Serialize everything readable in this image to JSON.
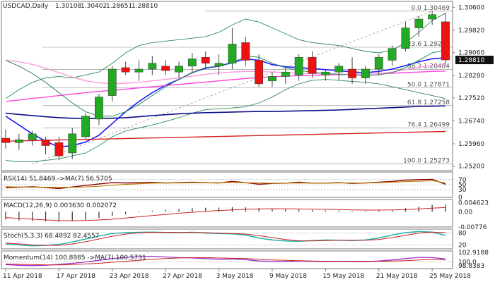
{
  "chart_data": {
    "type": "candlestick",
    "title": "USDCAD,Daily",
    "ohlc_header": {
      "open": "1.30108",
      "high": "1.30402",
      "low": "1.28651",
      "close": "1.28810"
    },
    "current_price": "1.28810",
    "x_ticks": [
      "11 Apr 2018",
      "17 Apr 2018",
      "23 Apr 2018",
      "27 Apr 2018",
      "3 May 2018",
      "9 May 2018",
      "15 May 2018",
      "21 May 2018",
      "25 May 2018"
    ],
    "main_y_ticks": [
      "1.30600",
      "1.29820",
      "1.29060",
      "1.28280",
      "1.27520",
      "1.26740",
      "1.25960",
      "1.25200"
    ],
    "candles": [
      {
        "o": 1.2615,
        "h": 1.2645,
        "l": 1.258,
        "c": 1.26
      },
      {
        "o": 1.26,
        "h": 1.263,
        "l": 1.2575,
        "c": 1.261
      },
      {
        "o": 1.261,
        "h": 1.264,
        "l": 1.259,
        "c": 1.263
      },
      {
        "o": 1.261,
        "h": 1.262,
        "l": 1.256,
        "c": 1.259
      },
      {
        "o": 1.26,
        "h": 1.262,
        "l": 1.254,
        "c": 1.2555
      },
      {
        "o": 1.2565,
        "h": 1.265,
        "l": 1.2545,
        "c": 1.263
      },
      {
        "o": 1.262,
        "h": 1.27,
        "l": 1.261,
        "c": 1.269
      },
      {
        "o": 1.268,
        "h": 1.2765,
        "l": 1.266,
        "c": 1.2755
      },
      {
        "o": 1.276,
        "h": 1.286,
        "l": 1.274,
        "c": 1.285
      },
      {
        "o": 1.2855,
        "h": 1.2875,
        "l": 1.283,
        "c": 1.284
      },
      {
        "o": 1.284,
        "h": 1.288,
        "l": 1.281,
        "c": 1.285
      },
      {
        "o": 1.285,
        "h": 1.2895,
        "l": 1.283,
        "c": 1.287
      },
      {
        "o": 1.286,
        "h": 1.288,
        "l": 1.283,
        "c": 1.2845
      },
      {
        "o": 1.284,
        "h": 1.2875,
        "l": 1.282,
        "c": 1.286
      },
      {
        "o": 1.286,
        "h": 1.2905,
        "l": 1.2835,
        "c": 1.2885
      },
      {
        "o": 1.289,
        "h": 1.291,
        "l": 1.285,
        "c": 1.287
      },
      {
        "o": 1.286,
        "h": 1.29,
        "l": 1.283,
        "c": 1.287
      },
      {
        "o": 1.287,
        "h": 1.299,
        "l": 1.285,
        "c": 1.2935
      },
      {
        "o": 1.294,
        "h": 1.296,
        "l": 1.286,
        "c": 1.288
      },
      {
        "o": 1.288,
        "h": 1.29,
        "l": 1.279,
        "c": 1.28
      },
      {
        "o": 1.281,
        "h": 1.284,
        "l": 1.279,
        "c": 1.2825
      },
      {
        "o": 1.2825,
        "h": 1.2855,
        "l": 1.28,
        "c": 1.284
      },
      {
        "o": 1.283,
        "h": 1.29,
        "l": 1.281,
        "c": 1.289
      },
      {
        "o": 1.289,
        "h": 1.291,
        "l": 1.282,
        "c": 1.2835
      },
      {
        "o": 1.283,
        "h": 1.285,
        "l": 1.281,
        "c": 1.284
      },
      {
        "o": 1.284,
        "h": 1.287,
        "l": 1.281,
        "c": 1.286
      },
      {
        "o": 1.285,
        "h": 1.289,
        "l": 1.28,
        "c": 1.282
      },
      {
        "o": 1.282,
        "h": 1.286,
        "l": 1.28,
        "c": 1.285
      },
      {
        "o": 1.285,
        "h": 1.29,
        "l": 1.283,
        "c": 1.289
      },
      {
        "o": 1.288,
        "h": 1.293,
        "l": 1.286,
        "c": 1.292
      },
      {
        "o": 1.292,
        "h": 1.301,
        "l": 1.291,
        "c": 1.299
      },
      {
        "o": 1.299,
        "h": 1.303,
        "l": 1.296,
        "c": 1.302
      },
      {
        "o": 1.302,
        "h": 1.3047,
        "l": 1.3,
        "c": 1.3035
      },
      {
        "o": 1.30108,
        "h": 1.30402,
        "l": 1.28651,
        "c": 1.2881
      }
    ],
    "overlays": [
      {
        "color": "#1a1aff",
        "width": 1.6,
        "values": [
          1.269,
          1.266,
          1.263,
          1.2605,
          1.2585,
          1.259,
          1.2602,
          1.2625,
          1.2665,
          1.2705,
          1.274,
          1.277,
          1.2795,
          1.2815,
          1.2838,
          1.2853,
          1.286,
          1.2872,
          1.2885,
          1.288,
          1.2865,
          1.2858,
          1.2855,
          1.2852,
          1.2848,
          1.2845,
          1.284,
          1.2838,
          1.2842,
          1.285,
          1.2862,
          1.2875,
          1.2885,
          1.2888
        ]
      },
      {
        "color": "#0b0b8a",
        "width": 1.6,
        "values": [
          1.27,
          1.2696,
          1.2692,
          1.2688,
          1.2685,
          1.2683,
          1.2682,
          1.2682,
          1.2683,
          1.2685,
          1.2688,
          1.2692,
          1.2695,
          1.2698,
          1.27,
          1.2702,
          1.2703,
          1.2704,
          1.2705,
          1.2706,
          1.2706,
          1.2707,
          1.2708,
          1.2709,
          1.271,
          1.2711,
          1.2713,
          1.2715,
          1.2717,
          1.2719,
          1.2721,
          1.2723,
          1.2724,
          1.2725
        ]
      },
      {
        "color": "#ff44dd",
        "width": 1.4,
        "values": [
          1.274,
          1.2745,
          1.275,
          1.2755,
          1.276,
          1.2765,
          1.277,
          1.2774,
          1.2778,
          1.2782,
          1.2786,
          1.279,
          1.2794,
          1.2798,
          1.2802,
          1.2806,
          1.281,
          1.2814,
          1.2818,
          1.2821,
          1.2824,
          1.2826,
          1.2828,
          1.2829,
          1.283,
          1.2831,
          1.2832,
          1.2833,
          1.2834,
          1.2836,
          1.2838,
          1.284,
          1.2842,
          1.2843
        ]
      },
      {
        "color": "#ff9ad8",
        "width": 1.4,
        "values": [
          1.288,
          1.2875,
          1.2866,
          1.2853,
          1.2838,
          1.2823,
          1.281,
          1.2803,
          1.28,
          1.2802,
          1.2805,
          1.281,
          1.2815,
          1.282,
          1.2826,
          1.2832,
          1.2837,
          1.284,
          1.2842,
          1.2842,
          1.284,
          1.2838,
          1.2836,
          1.2835,
          1.2834,
          1.2833,
          1.2832,
          1.2833,
          1.2835,
          1.284,
          1.2848,
          1.2856,
          1.2862,
          1.2865
        ]
      },
      {
        "color": "#2e8b57",
        "width": 1.0,
        "values": [
          1.288,
          1.286,
          1.2835,
          1.2805,
          1.277,
          1.2735,
          1.2705,
          1.269,
          1.269,
          1.2705,
          1.273,
          1.276,
          1.279,
          1.2815,
          1.2838,
          1.2855,
          1.286,
          1.287,
          1.2895,
          1.289,
          1.287,
          1.2855,
          1.2845,
          1.284,
          1.2835,
          1.2832,
          1.283,
          1.2828,
          1.283,
          1.2838,
          1.2855,
          1.288,
          1.2905,
          1.2915
        ]
      },
      {
        "color": "#d42020",
        "width": 1.4,
        "values": [
          1.2605,
          1.2606,
          1.2607,
          1.2608,
          1.2609,
          1.261,
          1.2611,
          1.2612,
          1.2613,
          1.2614,
          1.2615,
          1.2616,
          1.2617,
          1.2618,
          1.2619,
          1.262,
          1.2621,
          1.2622,
          1.2623,
          1.2624,
          1.2625,
          1.2626,
          1.2627,
          1.2628,
          1.2629,
          1.263,
          1.2631,
          1.2632,
          1.2633,
          1.2634,
          1.2635,
          1.2636,
          1.2637,
          1.2638
        ]
      }
    ],
    "bands": {
      "color": "#2e8b57",
      "upper": [
        1.275,
        1.278,
        1.2805,
        1.282,
        1.2825,
        1.282,
        1.283,
        1.284,
        1.287,
        1.2905,
        1.293,
        1.294,
        1.2945,
        1.295,
        1.2955,
        1.296,
        1.2975,
        1.3,
        1.302,
        1.301,
        1.299,
        1.297,
        1.295,
        1.294,
        1.2935,
        1.293,
        1.292,
        1.291,
        1.2905,
        1.2915,
        1.294,
        1.2975,
        1.3015,
        1.304
      ],
      "lower": [
        1.254,
        1.2535,
        1.2535,
        1.254,
        1.2545,
        1.2555,
        1.2565,
        1.259,
        1.262,
        1.264,
        1.265,
        1.266,
        1.2672,
        1.2685,
        1.27,
        1.2712,
        1.2715,
        1.2718,
        1.2722,
        1.2735,
        1.2755,
        1.278,
        1.28,
        1.2812,
        1.2815,
        1.2812,
        1.2808,
        1.2805,
        1.28,
        1.279,
        1.278,
        1.277,
        1.276,
        1.275
      ]
    },
    "fib_levels": [
      {
        "label": "0.0 1.30469",
        "value": 1.30469
      },
      {
        "label": "23.6 1.29243",
        "value": 1.29243
      },
      {
        "label": "38.2 1.28484",
        "value": 1.28484
      },
      {
        "label": "50.0 1.27871",
        "value": 1.27871
      },
      {
        "label": "61.8 1.27258",
        "value": 1.27258
      },
      {
        "label": "76.4 1.26499",
        "value": 1.26499
      },
      {
        "label": "100.0 1.25273",
        "value": 1.25273
      }
    ],
    "panels": {
      "rsi": {
        "label": "RSI(14) 51.8469 ->MA(7) 56.5705",
        "y_ticks": [
          "70",
          "50",
          "30",
          "0"
        ],
        "values": [
          38,
          40,
          42,
          39,
          35,
          41,
          47,
          53,
          58,
          57,
          58,
          59,
          57,
          58,
          60,
          58,
          57,
          63,
          58,
          52,
          55,
          56,
          60,
          56,
          56,
          58,
          55,
          57,
          60,
          63,
          68,
          70,
          71,
          52
        ],
        "ma_values": [
          42,
          41,
          40,
          40,
          40,
          40,
          41,
          44,
          48,
          51,
          54,
          56,
          57,
          57,
          58,
          58,
          58,
          59,
          58,
          57,
          56,
          56,
          57,
          56,
          56,
          57,
          57,
          57,
          58,
          60,
          62,
          64,
          66,
          57
        ]
      },
      "macd": {
        "label": "MACD(12,26,9) 0.003630 0.002072",
        "y_ticks": [
          "0.004623",
          "0.00",
          "-0.00776"
        ],
        "hist": [
          -0.004,
          -0.0045,
          -0.0048,
          -0.005,
          -0.0051,
          -0.0048,
          -0.0042,
          -0.0033,
          -0.0022,
          -0.0012,
          -0.0003,
          0.0005,
          0.001,
          0.0014,
          0.0018,
          0.002,
          0.0021,
          0.0023,
          0.0022,
          0.0018,
          0.0015,
          0.0012,
          0.0011,
          0.0009,
          0.0007,
          0.0006,
          0.0004,
          0.0004,
          0.0006,
          0.001,
          0.0018,
          0.0027,
          0.0035,
          0.0036
        ],
        "signal": [
          -0.003,
          -0.0034,
          -0.0038,
          -0.0042,
          -0.0045,
          -0.0046,
          -0.0045,
          -0.0042,
          -0.0038,
          -0.0032,
          -0.0026,
          -0.002,
          -0.0014,
          -0.0008,
          -0.0003,
          0.0002,
          0.0006,
          0.0009,
          0.0012,
          0.0014,
          0.0015,
          0.0015,
          0.0014,
          0.0013,
          0.0012,
          0.0011,
          0.0009,
          0.0008,
          0.0008,
          0.0009,
          0.0011,
          0.0014,
          0.0018,
          0.0021
        ]
      },
      "stoch": {
        "label": "Stoch(5,3,3) 68.4892 82.4557",
        "y_ticks": [
          "80",
          "20"
        ],
        "k": [
          25,
          20,
          15,
          18,
          22,
          35,
          50,
          65,
          78,
          82,
          84,
          85,
          83,
          82,
          84,
          80,
          78,
          76,
          70,
          55,
          45,
          40,
          38,
          42,
          45,
          44,
          42,
          45,
          55,
          70,
          82,
          88,
          85,
          68
        ],
        "d": [
          30,
          25,
          20,
          18,
          18,
          25,
          36,
          50,
          64,
          75,
          81,
          84,
          84,
          83,
          83,
          82,
          80,
          78,
          75,
          67,
          57,
          47,
          41,
          40,
          42,
          44,
          44,
          44,
          47,
          57,
          69,
          80,
          85,
          82
        ]
      },
      "momentum": {
        "label": "Momentum(14) 100.8985 ->MA(7) 100.5731",
        "y_ticks": [
          "102.9188",
          "100.0",
          "98.8383"
        ],
        "values": [
          99.2,
          99.0,
          98.9,
          99.0,
          99.3,
          99.6,
          100.0,
          100.5,
          101.0,
          101.4,
          101.6,
          101.7,
          101.5,
          101.3,
          101.2,
          101.0,
          100.8,
          100.9,
          100.7,
          100.3,
          100.2,
          100.1,
          100.3,
          100.2,
          100.1,
          100.2,
          100.1,
          100.1,
          100.3,
          100.6,
          101.0,
          101.4,
          101.3,
          100.9
        ],
        "ma_values": [
          99.4,
          99.3,
          99.2,
          99.1,
          99.1,
          99.2,
          99.4,
          99.6,
          99.9,
          100.2,
          100.5,
          100.8,
          101.0,
          101.2,
          101.3,
          101.3,
          101.2,
          101.1,
          101.0,
          100.8,
          100.6,
          100.5,
          100.4,
          100.3,
          100.2,
          100.2,
          100.2,
          100.2,
          100.2,
          100.3,
          100.4,
          100.6,
          100.8,
          100.6
        ]
      }
    }
  }
}
